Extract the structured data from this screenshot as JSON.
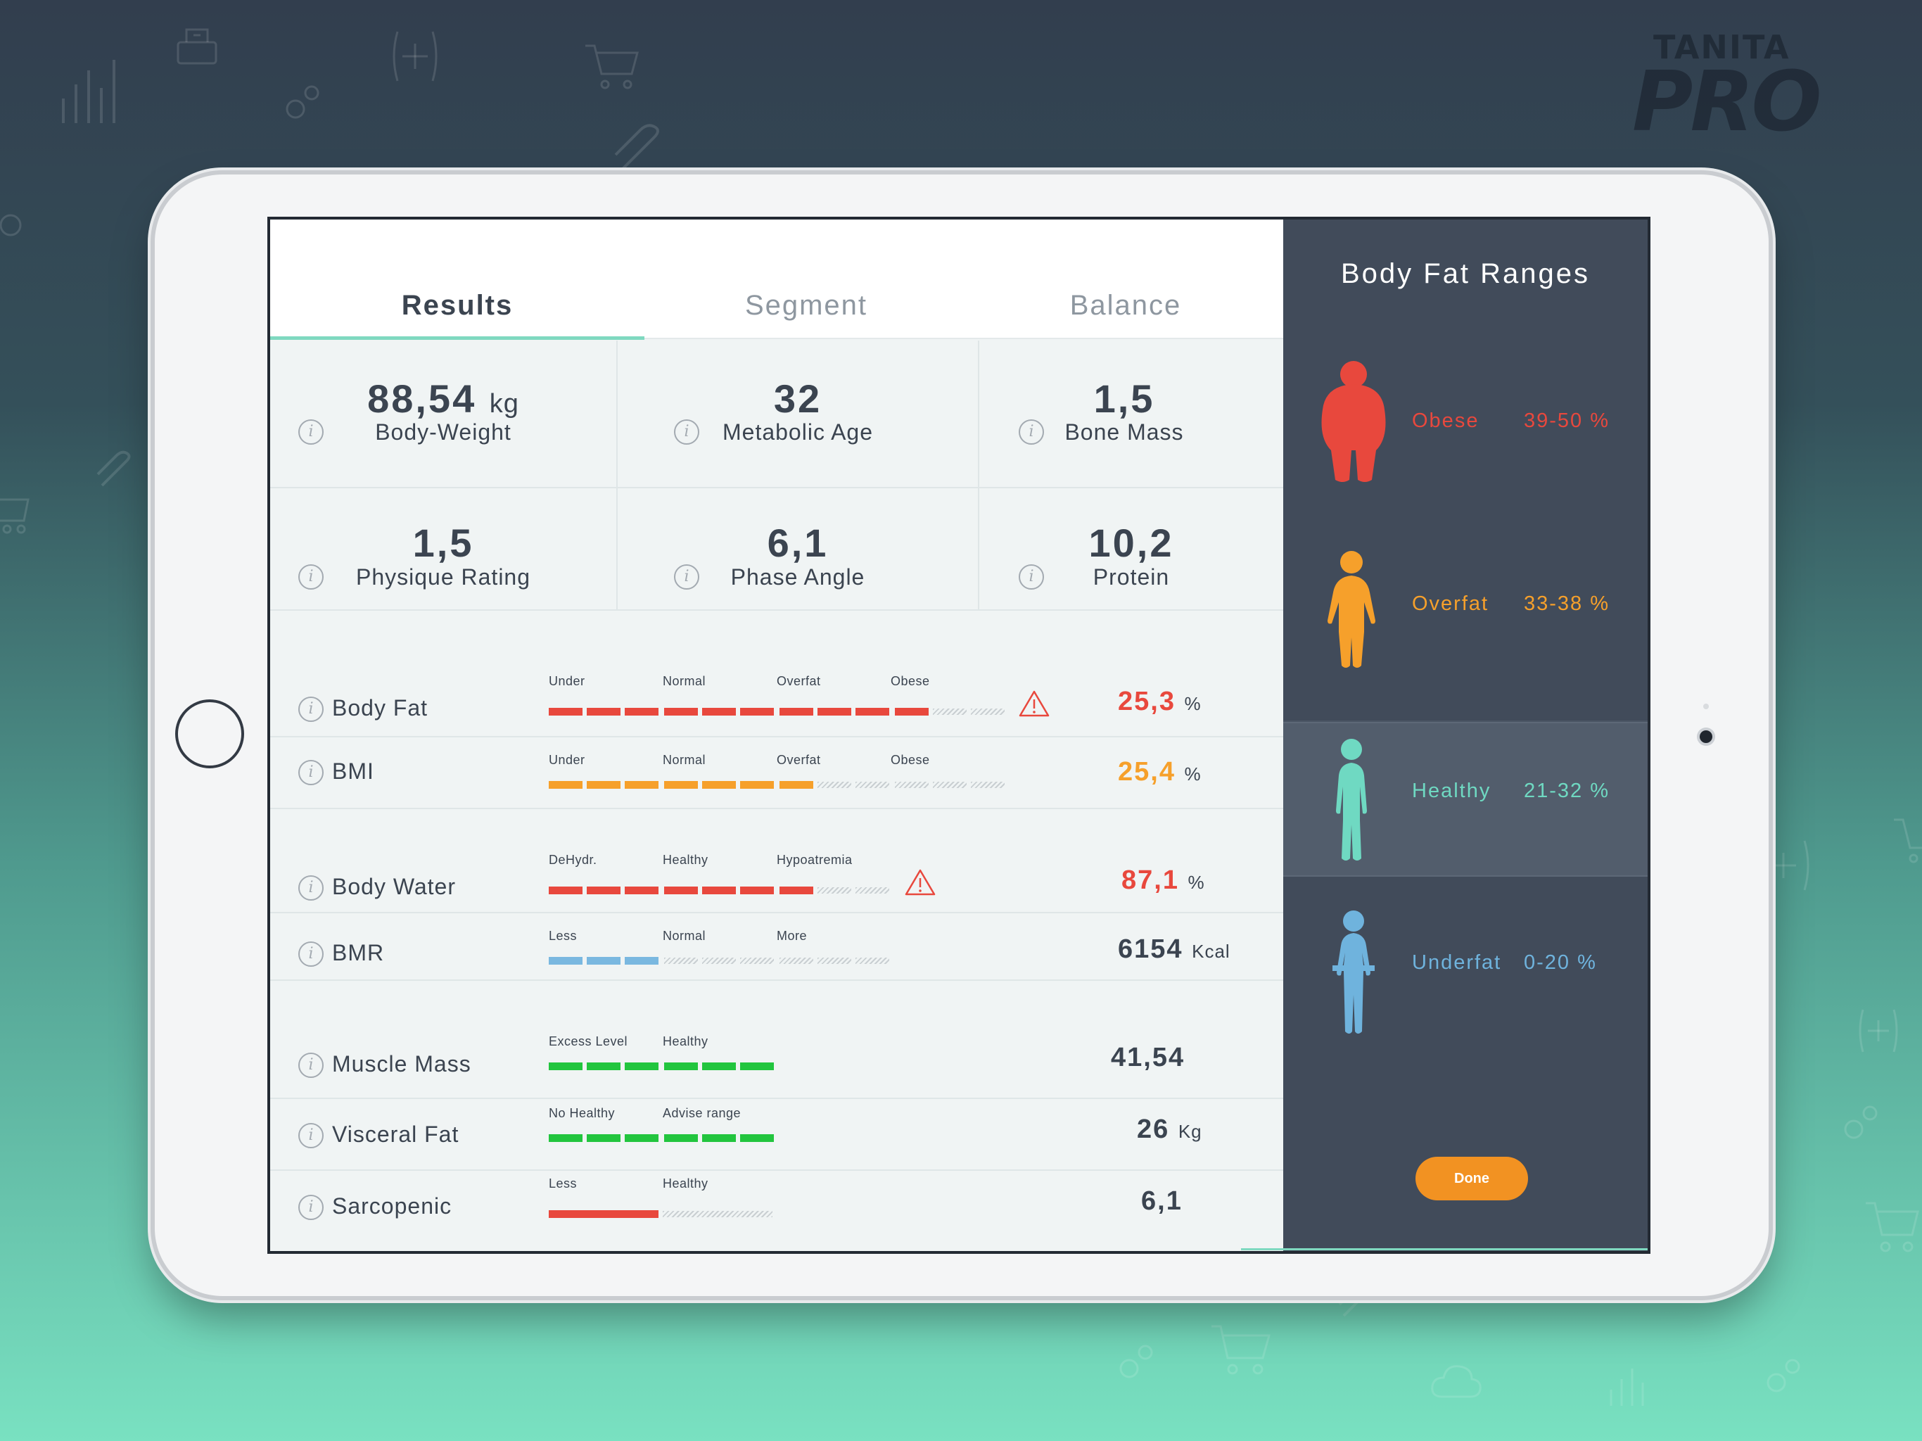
{
  "brand": {
    "line1": "TANITA",
    "line2": "PRO"
  },
  "tabs": [
    {
      "label": "Results",
      "active": true
    },
    {
      "label": "Segment",
      "active": false
    },
    {
      "label": "Balance",
      "active": false
    }
  ],
  "stats": [
    {
      "value": "88,54",
      "unit": "kg",
      "label": "Body-Weight"
    },
    {
      "value": "32",
      "unit": "",
      "label": "Metabolic Age"
    },
    {
      "value": "1,5",
      "unit": "",
      "label": "Bone Mass"
    },
    {
      "value": "1,5",
      "unit": "",
      "label": "Physique Rating"
    },
    {
      "value": "6,1",
      "unit": "",
      "label": "Phase Angle"
    },
    {
      "value": "10,2",
      "unit": "",
      "label": "Protein"
    }
  ],
  "info_glyph": "i",
  "metrics": [
    {
      "label": "Body Fat",
      "zones": [
        "Under",
        "Normal",
        "Overfat",
        "Obese"
      ],
      "value": "25,3",
      "unit": "%",
      "color": "#e8483d",
      "filled_segments": 10,
      "total_segments": 12,
      "warning": true
    },
    {
      "label": "BMI",
      "zones": [
        "Under",
        "Normal",
        "Overfat",
        "Obese"
      ],
      "value": "25,4",
      "unit": "%",
      "color": "#f6a02b",
      "filled_segments": 7,
      "total_segments": 12,
      "warning": false
    },
    {
      "label": "Body Water",
      "zones": [
        "DeHydr.",
        "Healthy",
        "Hypoatremia"
      ],
      "value": "87,1",
      "unit": "%",
      "color": "#e8483d",
      "filled_segments": 7,
      "total_segments": 9,
      "warning": true
    },
    {
      "label": "BMR",
      "zones": [
        "Less",
        "Normal",
        "More"
      ],
      "value": "6154",
      "unit": "Kcal",
      "color": "#7ab8e0",
      "filled_segments": 3,
      "total_segments": 9,
      "warning": false
    },
    {
      "label": "Muscle Mass",
      "zones": [
        "Excess Level",
        "Healthy"
      ],
      "value": "41,54",
      "unit": "",
      "color": "#22c53e",
      "filled_segments": 6,
      "total_segments": 6,
      "warning": false
    },
    {
      "label": "Visceral Fat",
      "zones": [
        "No Healthy",
        "Advise range"
      ],
      "value": "26",
      "unit": "Kg",
      "color": "#22c53e",
      "filled_segments": 6,
      "total_segments": 6,
      "warning": false
    },
    {
      "label": "Sarcopenic",
      "zones": [
        "Less",
        "Healthy"
      ],
      "value": "6,1",
      "unit": "",
      "color": "#e8483d",
      "filled_segments": 3,
      "total_segments": 6,
      "warning": false,
      "solid_fill": true
    }
  ],
  "ranges_panel": {
    "title": "Body Fat Ranges",
    "ranges": [
      {
        "name": "Obese",
        "range": "39-50 %",
        "color": "#e8483d",
        "selected": false
      },
      {
        "name": "Overfat",
        "range": "33-38 %",
        "color": "#f6a02b",
        "selected": false
      },
      {
        "name": "Healthy",
        "range": "21-32 %",
        "color": "#6fd9c2",
        "selected": true
      },
      {
        "name": "Underfat",
        "range": "0-20 %",
        "color": "#6fb3dd",
        "selected": false
      }
    ],
    "done_label": "Done",
    "done_color": "#f29222"
  },
  "icons": [
    "bar-chart-icon",
    "gear-icon",
    "plus-icon",
    "cart-icon",
    "paperclip-icon",
    "scale-icon",
    "cloud-icon",
    "warning-icon",
    "info-icon",
    "person-figure-icon"
  ]
}
